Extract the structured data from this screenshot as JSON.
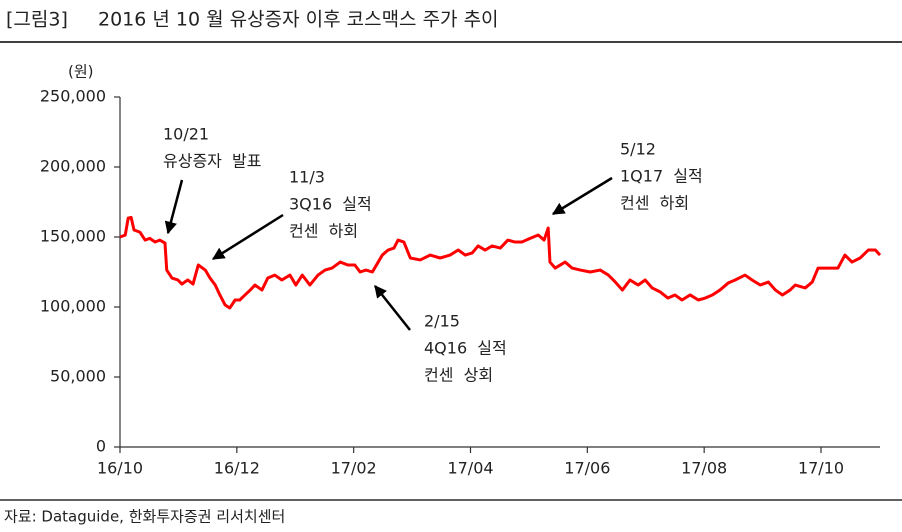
{
  "chart_data": {
    "type": "line",
    "figure_label": "[그림3]",
    "title": "2016 년 10 월 유상증자 이후 코스맥스 주가 추이",
    "y_label": "(원)",
    "source": "자료: Dataguide, 한화투자증권 리서치센터",
    "xlim": [
      0,
      13.01
    ],
    "xticks": [
      {
        "value": 0,
        "label": "16/10"
      },
      {
        "value": 2,
        "label": "16/12"
      },
      {
        "value": 4,
        "label": "17/02"
      },
      {
        "value": 6,
        "label": "17/04"
      },
      {
        "value": 8,
        "label": "17/06"
      },
      {
        "value": 10,
        "label": "17/08"
      },
      {
        "value": 12,
        "label": "17/10"
      }
    ],
    "ylim": [
      0,
      250000
    ],
    "yticks": [
      0,
      {
        "value": 50000,
        "label": "50,000"
      },
      {
        "value": 100000,
        "label": "100,000"
      },
      {
        "value": 150000,
        "label": "150,000"
      },
      {
        "value": 200000,
        "label": "200,000"
      },
      {
        "value": 250000,
        "label": "250,000"
      }
    ],
    "grid": false,
    "series": [
      {
        "name": "코스맥스",
        "color": "#ff0000",
        "x": [
          0,
          0.09,
          0.14,
          0.19,
          0.24,
          0.34,
          0.43,
          0.51,
          0.6,
          0.68,
          0.77,
          0.8,
          0.89,
          0.99,
          1.06,
          1.16,
          1.25,
          1.34,
          1.46,
          1.54,
          1.63,
          1.71,
          1.8,
          1.88,
          1.97,
          2.05,
          2.14,
          2.23,
          2.31,
          2.43,
          2.53,
          2.65,
          2.77,
          2.91,
          3.01,
          3.12,
          3.25,
          3.39,
          3.51,
          3.63,
          3.77,
          3.9,
          4.02,
          4.11,
          4.21,
          4.32,
          4.42,
          4.49,
          4.59,
          4.69,
          4.76,
          4.86,
          4.97,
          5.14,
          5.31,
          5.48,
          5.65,
          5.79,
          5.91,
          6.03,
          6.13,
          6.25,
          6.37,
          6.51,
          6.64,
          6.76,
          6.88,
          7.02,
          7.16,
          7.26,
          7.33,
          7.36,
          7.45,
          7.62,
          7.74,
          7.88,
          8.05,
          8.22,
          8.36,
          8.48,
          8.6,
          8.73,
          8.87,
          8.99,
          9.11,
          9.25,
          9.38,
          9.5,
          9.62,
          9.76,
          9.9,
          10.02,
          10.14,
          10.27,
          10.41,
          10.53,
          10.7,
          10.82,
          10.96,
          11.1,
          11.22,
          11.34,
          11.47,
          11.56,
          11.73,
          11.85,
          11.95,
          12.16,
          12.29,
          12.41,
          12.53,
          12.67,
          12.81,
          12.93,
          13.01
        ],
        "values": [
          150000,
          151400,
          163500,
          164000,
          155000,
          153500,
          147800,
          149000,
          146400,
          147800,
          145700,
          126400,
          120700,
          119300,
          116400,
          119300,
          116400,
          130000,
          126400,
          120700,
          115700,
          108600,
          101400,
          99300,
          105000,
          105000,
          108600,
          112100,
          115700,
          112100,
          120700,
          122800,
          119300,
          122800,
          115700,
          122800,
          115700,
          122800,
          126400,
          127800,
          132100,
          130000,
          130000,
          125000,
          126400,
          125000,
          132100,
          137100,
          140700,
          142100,
          147800,
          146400,
          135000,
          133600,
          137100,
          135000,
          137100,
          140700,
          137100,
          138600,
          143600,
          140700,
          143600,
          142100,
          147800,
          146400,
          146400,
          149000,
          151400,
          147800,
          156400,
          132100,
          127800,
          132100,
          127800,
          126400,
          125000,
          126400,
          122800,
          117800,
          112100,
          119300,
          115700,
          119300,
          113600,
          110700,
          106400,
          108600,
          105000,
          108600,
          105000,
          106400,
          108600,
          112100,
          117100,
          119300,
          122800,
          119300,
          115700,
          117800,
          112100,
          108600,
          112100,
          115700,
          113600,
          117800,
          127800,
          127800,
          127800,
          137100,
          132100,
          135000,
          140700,
          140700,
          137100
        ]
      }
    ],
    "annotations": [
      {
        "text": [
          "10/21",
          "유상증자  발표"
        ]
      },
      {
        "text": [
          "11/3",
          "3Q16  실적",
          "컨센  하회"
        ]
      },
      {
        "text": [
          "2/15",
          "4Q16  실적",
          "컨센  상회"
        ]
      },
      {
        "text": [
          "5/12",
          "1Q17  실적",
          "컨센  하회"
        ]
      }
    ]
  }
}
